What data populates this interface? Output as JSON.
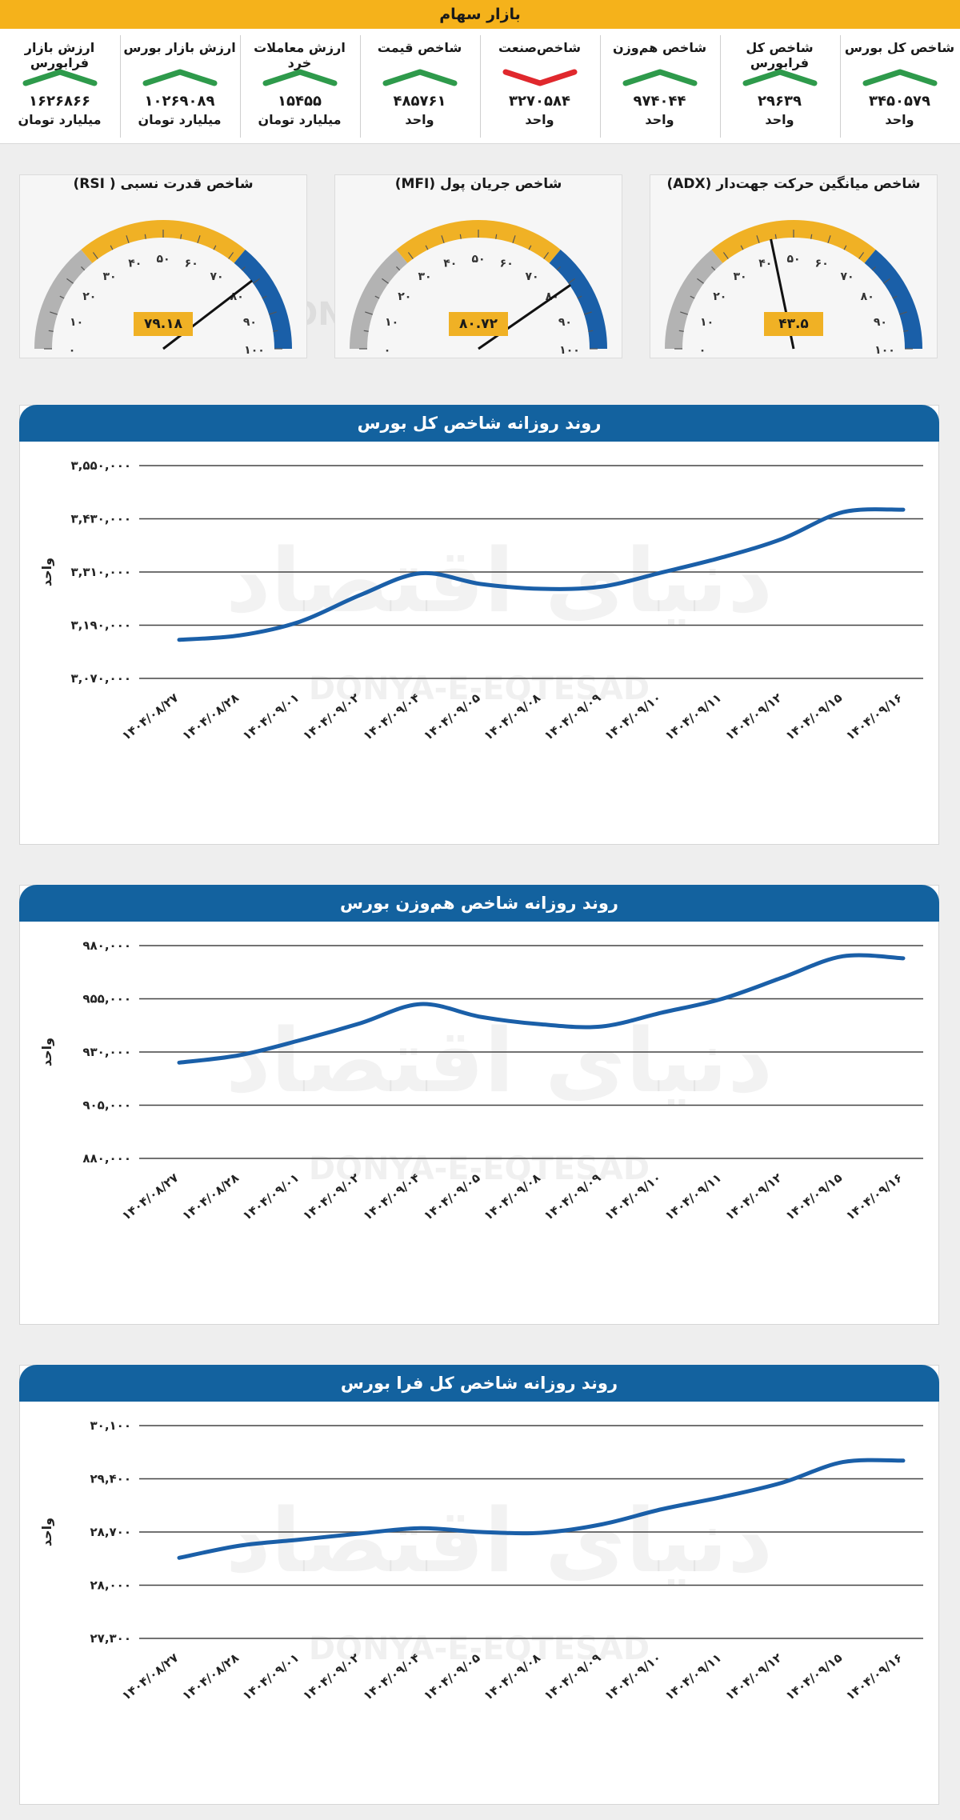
{
  "header": {
    "title": "بازار سهام"
  },
  "indicators": [
    {
      "label": "شاخص کل بورس",
      "value": "۳۴۵۰۵۷۹",
      "unit": "واحد",
      "trend": "up"
    },
    {
      "label": "شاخص کل فرابورس",
      "value": "۲۹۶۳۹",
      "unit": "واحد",
      "trend": "up"
    },
    {
      "label": "شاخص هم‌وزن",
      "value": "۹۷۴۰۴۴",
      "unit": "واحد",
      "trend": "up"
    },
    {
      "label": "شاخص‌صنعت",
      "value": "۳۲۷۰۵۸۴",
      "unit": "واحد",
      "trend": "down"
    },
    {
      "label": "شاخص قیمت",
      "value": "۴۸۵۷۶۱",
      "unit": "واحد",
      "trend": "up"
    },
    {
      "label": "ارزش معاملات خرد",
      "value": "۱۵۴۵۵",
      "unit": "میلیارد تومان",
      "trend": "up"
    },
    {
      "label": "ارزش بازار بورس",
      "value": "۱۰۲۶۹۰۸۹",
      "unit": "میلیارد تومان",
      "trend": "up"
    },
    {
      "label": "ارزش بازار فرابورس",
      "value": "۱۶۲۶۸۶۶",
      "unit": "میلیارد تومان",
      "trend": "up"
    }
  ],
  "trend_colors": {
    "up": "#2e9a4b",
    "down": "#e0282d"
  },
  "gauges": [
    {
      "title": "شاخص میانگین حرکت جهت‌دار (ADX)",
      "value": 43.5,
      "value_label": "۴۳.۵"
    },
    {
      "title": "شاخص جریان پول (MFI)",
      "value": 80.72,
      "value_label": "۸۰.۷۲"
    },
    {
      "title": "شاخص قدرت نسبی ( RSI)",
      "value": 79.18,
      "value_label": "۷۹.۱۸"
    }
  ],
  "gauge_ticks": [
    "۰",
    "۱۰",
    "۲۰",
    "۳۰",
    "۴۰",
    "۵۰",
    "۶۰",
    "۷۰",
    "۸۰",
    "۹۰",
    "۱۰۰"
  ],
  "gauge_colors": {
    "low": "#b3b3b3",
    "mid": "#f0b125",
    "high": "#1a5fa8"
  },
  "watermark": {
    "latin": "DONYA-E-EQTESAD",
    "arabic": "دنیای اقتصاد"
  },
  "chart_data": [
    {
      "type": "line",
      "title": "روند روزانه شاخص کل بورس",
      "ylabel": "واحد",
      "ylim": [
        3070000,
        3550000
      ],
      "y_ticks": [
        "۳,۰۷۰,۰۰۰",
        "۳,۱۹۰,۰۰۰",
        "۳,۳۱۰,۰۰۰",
        "۳,۴۳۰,۰۰۰",
        "۳,۵۵۰,۰۰۰"
      ],
      "categories": [
        "۱۴۰۴/۰۸/۲۷",
        "۱۴۰۴/۰۸/۲۸",
        "۱۴۰۴/۰۹/۰۱",
        "۱۴۰۴/۰۹/۰۲",
        "۱۴۰۴/۰۹/۰۴",
        "۱۴۰۴/۰۹/۰۵",
        "۱۴۰۴/۰۹/۰۸",
        "۱۴۰۴/۰۹/۰۹",
        "۱۴۰۴/۰۹/۱۰",
        "۱۴۰۴/۰۹/۱۱",
        "۱۴۰۴/۰۹/۱۲",
        "۱۴۰۴/۰۹/۱۵",
        "۱۴۰۴/۰۹/۱۶"
      ],
      "values": [
        3157000,
        3167000,
        3198000,
        3258000,
        3307000,
        3283000,
        3272000,
        3277000,
        3309000,
        3343000,
        3385000,
        3445000,
        3450579
      ],
      "color": "#1a5fa8",
      "grid": true
    },
    {
      "type": "line",
      "title": "روند روزانه شاخص هم‌وزن بورس",
      "ylabel": "واحد",
      "ylim": [
        880000,
        980000
      ],
      "y_ticks": [
        "۸۸۰,۰۰۰",
        "۹۰۵,۰۰۰",
        "۹۳۰,۰۰۰",
        "۹۵۵,۰۰۰",
        "۹۸۰,۰۰۰"
      ],
      "categories": [
        "۱۴۰۴/۰۸/۲۷",
        "۱۴۰۴/۰۸/۲۸",
        "۱۴۰۴/۰۹/۰۱",
        "۱۴۰۴/۰۹/۰۲",
        "۱۴۰۴/۰۹/۰۴",
        "۱۴۰۴/۰۹/۰۵",
        "۱۴۰۴/۰۹/۰۸",
        "۱۴۰۴/۰۹/۰۹",
        "۱۴۰۴/۰۹/۱۰",
        "۱۴۰۴/۰۹/۱۱",
        "۱۴۰۴/۰۹/۱۲",
        "۱۴۰۴/۰۹/۱۵",
        "۱۴۰۴/۰۹/۱۶"
      ],
      "values": [
        925000,
        928500,
        935500,
        943500,
        952500,
        946500,
        943000,
        942000,
        948500,
        955000,
        965000,
        975000,
        974044
      ],
      "color": "#1a5fa8",
      "grid": true
    },
    {
      "type": "line",
      "title": "روند روزانه شاخص کل فرا بورس",
      "ylabel": "واحد",
      "ylim": [
        27300,
        30100
      ],
      "y_ticks": [
        "۲۷,۳۰۰",
        "۲۸,۰۰۰",
        "۲۸,۷۰۰",
        "۲۹,۴۰۰",
        "۳۰,۱۰۰"
      ],
      "categories": [
        "۱۴۰۴/۰۸/۲۷",
        "۱۴۰۴/۰۸/۲۸",
        "۱۴۰۴/۰۹/۰۱",
        "۱۴۰۴/۰۹/۰۲",
        "۱۴۰۴/۰۹/۰۴",
        "۱۴۰۴/۰۹/۰۵",
        "۱۴۰۴/۰۹/۰۸",
        "۱۴۰۴/۰۹/۰۹",
        "۱۴۰۴/۰۹/۱۰",
        "۱۴۰۴/۰۹/۱۱",
        "۱۴۰۴/۰۹/۱۲",
        "۱۴۰۴/۰۹/۱۵",
        "۱۴۰۴/۰۹/۱۶"
      ],
      "values": [
        28360,
        28520,
        28600,
        28680,
        28750,
        28700,
        28690,
        28800,
        29000,
        29160,
        29350,
        29620,
        29639
      ],
      "color": "#1a5fa8",
      "grid": true
    }
  ]
}
